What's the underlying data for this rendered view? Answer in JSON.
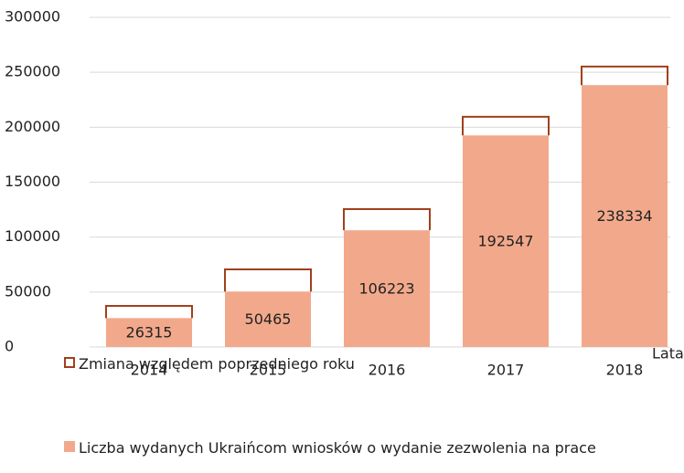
{
  "chart_data": {
    "type": "stacked_bar",
    "categories": [
      "2014",
      "2015",
      "2016",
      "2017",
      "2018"
    ],
    "series": [
      {
        "name": "Liczba wydanych Ukraińcom wniosków o wydanie zezwolenia na prace",
        "color": "#f2a98b",
        "values": [
          26315,
          50465,
          106223,
          192547,
          238334
        ]
      },
      {
        "name": "Zmiana względem poprzedniego roku",
        "color": "#a0401c",
        "outline": true,
        "values": [
          11100,
          20200,
          19300,
          17000,
          16900
        ]
      }
    ],
    "x_label": "Lata",
    "ylim": [
      0,
      300000
    ],
    "yticks": [
      0,
      50000,
      100000,
      150000,
      200000,
      250000,
      300000
    ],
    "grid": true
  }
}
